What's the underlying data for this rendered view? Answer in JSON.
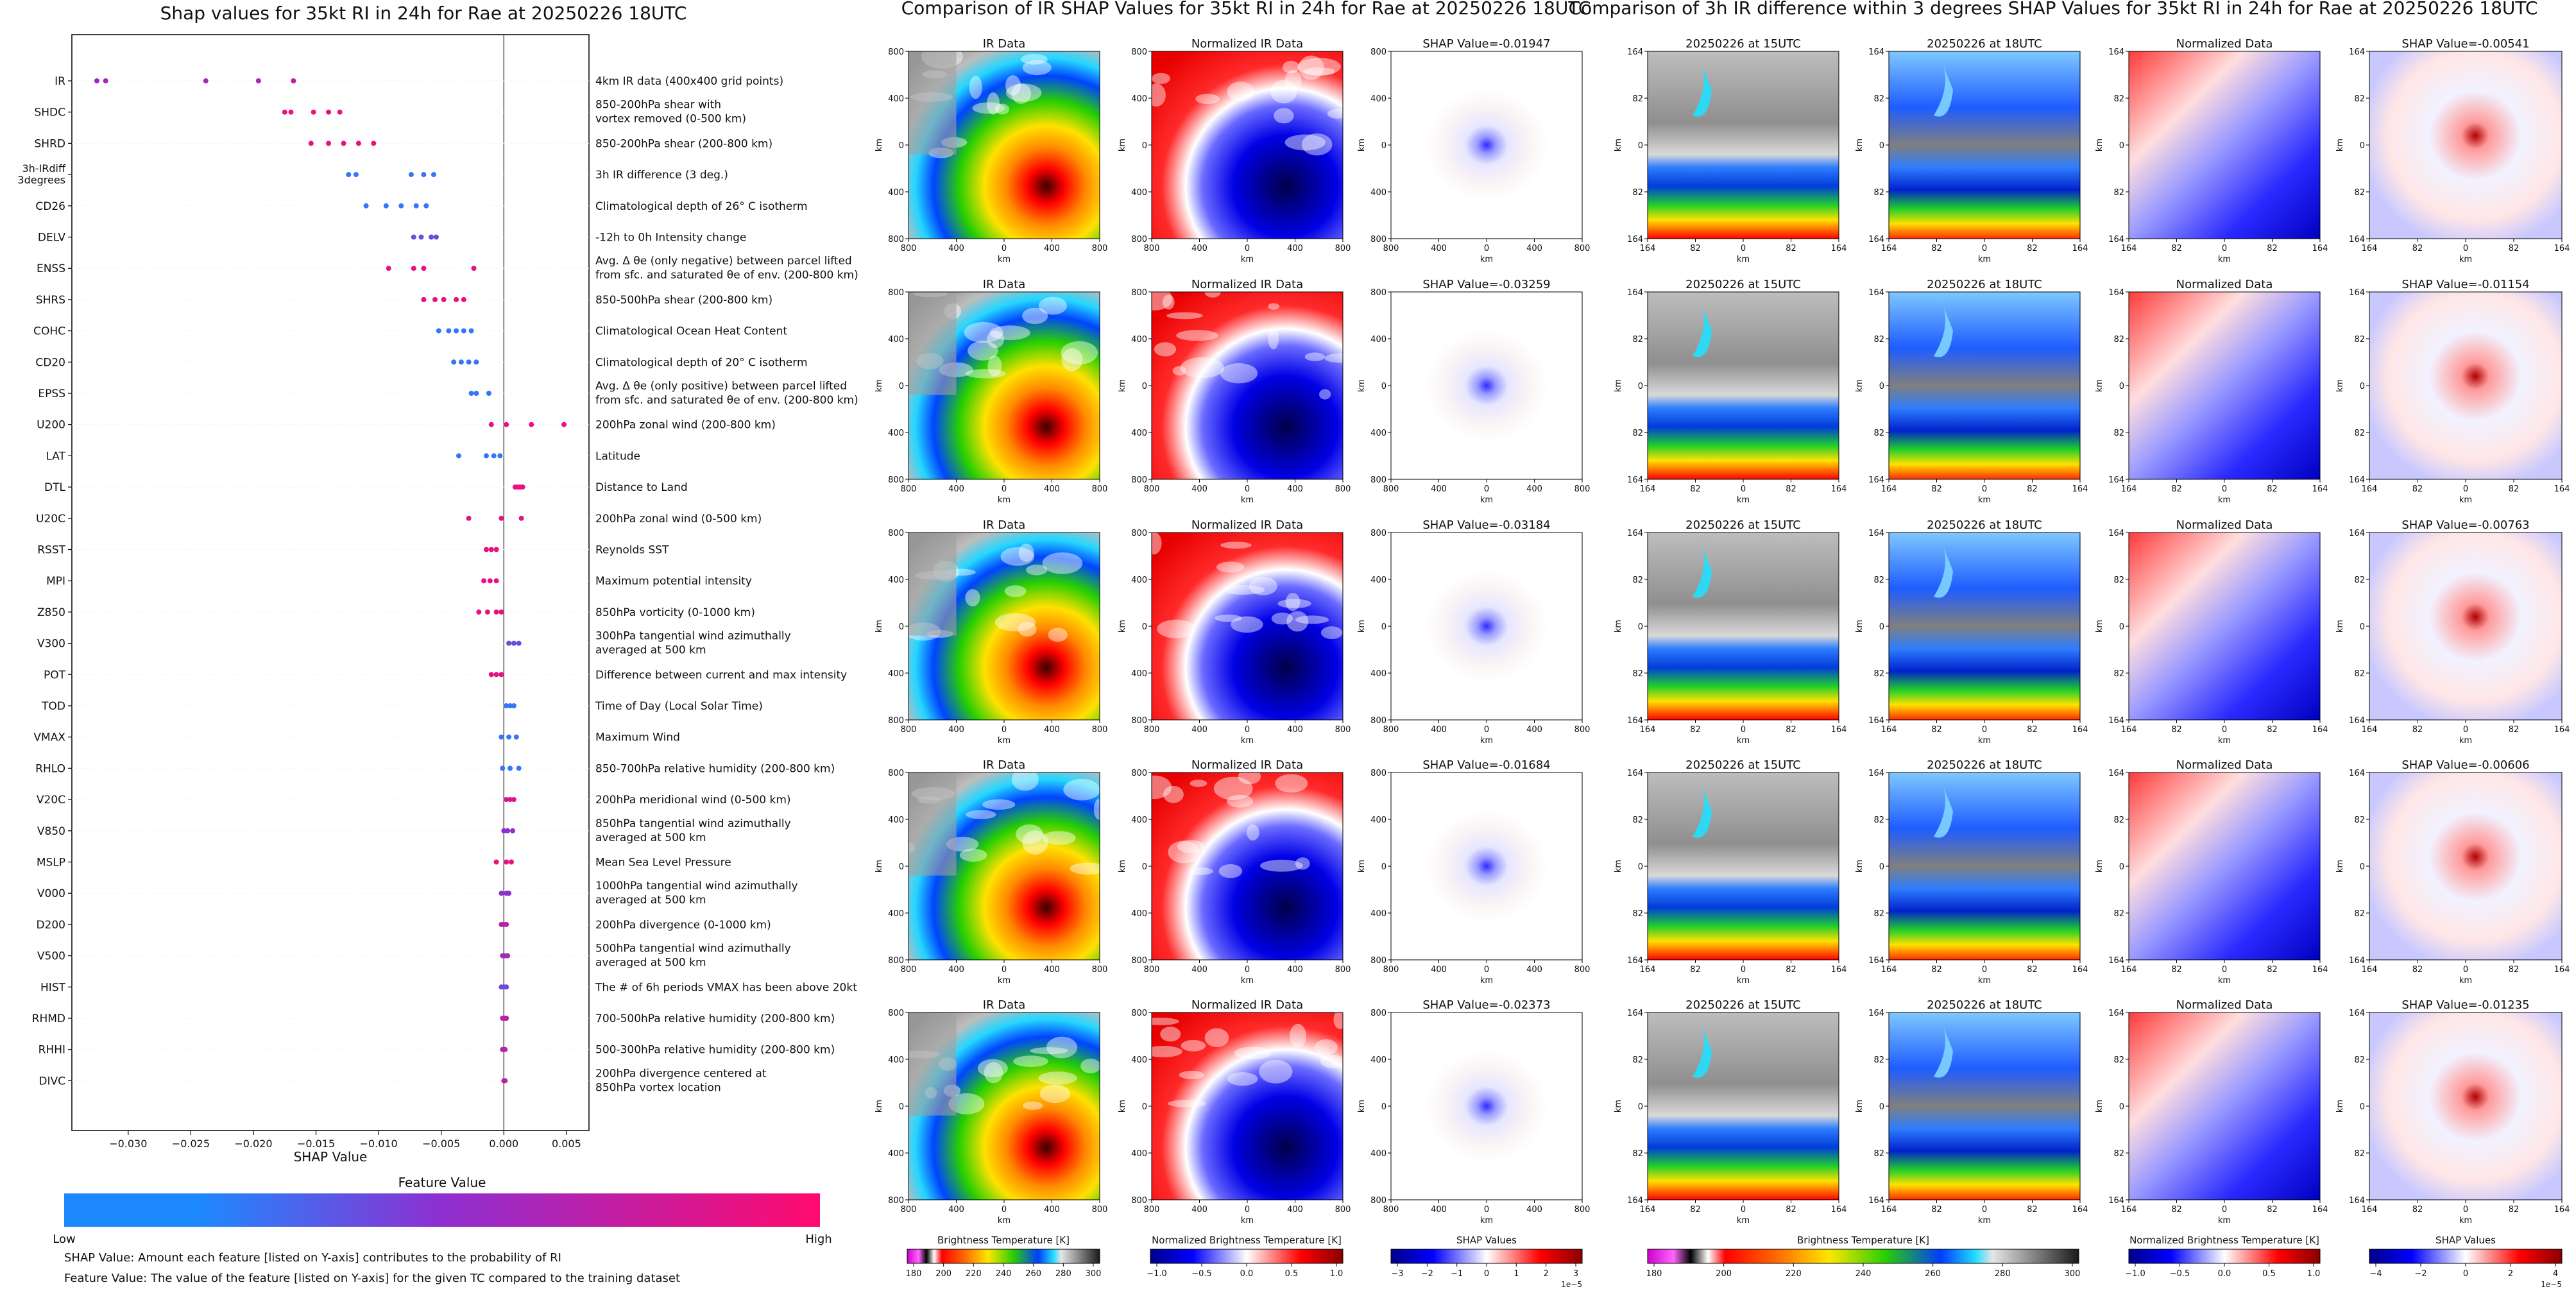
{
  "left_panel": {
    "title": "Shap values for 35kt RI in 24h for Rae at 20250226 18UTC",
    "xlabel": "SHAP Value",
    "x_ticks": [
      "−0.030",
      "−0.025",
      "−0.020",
      "−0.015",
      "−0.010",
      "−0.005",
      "0.000",
      "0.005"
    ],
    "xlim": [
      -0.0345,
      0.0068
    ],
    "colorbar_title": "Feature Value",
    "colorbar_low": "Low",
    "colorbar_high": "High",
    "footnote_1": "SHAP Value: Amount each feature [listed on Y-axis] contributes to the probability of RI",
    "footnote_2": "Feature Value: The value of the feature [listed on Y-axis] for the given TC compared to the training dataset",
    "colors": {
      "low": "#1e88ff",
      "mid": "#8e2fd0",
      "high": "#ff0a6e"
    }
  },
  "chart_data": [
    {
      "type": "scatter",
      "title": "Shap values for 35kt RI in 24h for Rae at 20250226 18UTC",
      "xlabel": "SHAP Value",
      "ylabel": "",
      "xlim": [
        -0.0345,
        0.0068
      ],
      "color_encoding": "Feature Value (Low to High)",
      "series": [
        {
          "feature": "IR",
          "description": "4km IR data (400x400 grid points)",
          "x": [
            -0.0325,
            -0.0318,
            -0.0238,
            -0.0196,
            -0.0168
          ],
          "feature_level": [
            0.55,
            0.6,
            0.6,
            0.65,
            0.7
          ]
        },
        {
          "feature": "SHDC",
          "description": "850-200hPa shear with\nvortex removed (0-500 km)",
          "x": [
            -0.0175,
            -0.017,
            -0.0152,
            -0.014,
            -0.0131
          ],
          "feature_level": [
            0.9,
            0.9,
            0.9,
            0.9,
            0.9
          ]
        },
        {
          "feature": "SHRD",
          "description": "850-200hPa shear (200-800 km)",
          "x": [
            -0.0154,
            -0.014,
            -0.0128,
            -0.0116,
            -0.0104
          ],
          "feature_level": [
            0.9,
            0.9,
            0.9,
            0.9,
            0.9
          ]
        },
        {
          "feature": "3h-IRdiff\n3degrees",
          "description": "3h IR difference (3 deg.)",
          "x": [
            -0.0124,
            -0.0118,
            -0.0074,
            -0.0064,
            -0.0056
          ],
          "feature_level": [
            0.1,
            0.1,
            0.1,
            0.15,
            0.1
          ]
        },
        {
          "feature": "CD26",
          "description": "Climatological depth of 26° C isotherm",
          "x": [
            -0.011,
            -0.0094,
            -0.0082,
            -0.007,
            -0.0062
          ],
          "feature_level": [
            0.1,
            0.1,
            0.1,
            0.1,
            0.1
          ]
        },
        {
          "feature": "DELV",
          "description": "-12h to 0h Intensity change",
          "x": [
            -0.0072,
            -0.0066,
            -0.0058,
            -0.0054
          ],
          "feature_level": [
            0.35,
            0.35,
            0.35,
            0.35
          ]
        },
        {
          "feature": "ENSS",
          "description": "Avg. Δ θe (only negative) between parcel lifted\nfrom sfc. and saturated θe of env. (200-800 km)",
          "x": [
            -0.0092,
            -0.0072,
            -0.0064,
            -0.0024
          ],
          "feature_level": [
            0.9,
            0.9,
            0.9,
            0.9
          ]
        },
        {
          "feature": "SHRS",
          "description": "850-500hPa shear (200-800 km)",
          "x": [
            -0.0064,
            -0.0055,
            -0.0048,
            -0.0038,
            -0.0032
          ],
          "feature_level": [
            0.9,
            0.9,
            0.9,
            0.9,
            0.9
          ]
        },
        {
          "feature": "COHC",
          "description": "Climatological Ocean Heat Content",
          "x": [
            -0.0052,
            -0.0044,
            -0.0038,
            -0.0032,
            -0.0026
          ],
          "feature_level": [
            0.1,
            0.1,
            0.1,
            0.1,
            0.1
          ]
        },
        {
          "feature": "CD20",
          "description": "Climatological depth of 20° C isotherm",
          "x": [
            -0.004,
            -0.0034,
            -0.0028,
            -0.0022
          ],
          "feature_level": [
            0.1,
            0.1,
            0.1,
            0.1
          ]
        },
        {
          "feature": "EPSS",
          "description": "Avg. Δ θe (only positive) between parcel lifted\nfrom sfc. and saturated θe of env. (200-800 km)",
          "x": [
            -0.0026,
            -0.0022,
            -0.0012
          ],
          "feature_level": [
            0.1,
            0.1,
            0.1
          ]
        },
        {
          "feature": "U200",
          "description": "200hPa zonal wind (200-800 km)",
          "x": [
            -0.001,
            0.0002,
            0.0022,
            0.0048
          ],
          "feature_level": [
            0.9,
            0.9,
            0.9,
            0.9
          ]
        },
        {
          "feature": "LAT",
          "description": "Latitude",
          "x": [
            -0.0036,
            -0.0014,
            -0.0008,
            -0.0003
          ],
          "feature_level": [
            0.1,
            0.1,
            0.1,
            0.1
          ]
        },
        {
          "feature": "DTL",
          "description": "Distance to Land",
          "x": [
            0.0009,
            0.0011,
            0.0013,
            0.0015
          ],
          "feature_level": [
            0.9,
            0.9,
            0.9,
            0.9
          ]
        },
        {
          "feature": "U20C",
          "description": "200hPa zonal wind (0-500 km)",
          "x": [
            -0.0028,
            -0.0002,
            0.0014
          ],
          "feature_level": [
            0.9,
            0.9,
            0.9
          ]
        },
        {
          "feature": "RSST",
          "description": "Reynolds SST",
          "x": [
            -0.0014,
            -0.001,
            -0.0006
          ],
          "feature_level": [
            0.9,
            0.9,
            0.9
          ]
        },
        {
          "feature": "MPI",
          "description": "Maximum potential intensity",
          "x": [
            -0.0016,
            -0.0011,
            -0.0006
          ],
          "feature_level": [
            0.9,
            0.9,
            0.9
          ]
        },
        {
          "feature": "Z850",
          "description": "850hPa vorticity (0-1000 km)",
          "x": [
            -0.002,
            -0.0013,
            -0.0006,
            -0.0002
          ],
          "feature_level": [
            0.9,
            0.9,
            0.9,
            0.9
          ]
        },
        {
          "feature": "V300",
          "description": "300hPa tangential wind azimuthally\naveraged at 500 km",
          "x": [
            0.0004,
            0.0008,
            0.0012
          ],
          "feature_level": [
            0.35,
            0.35,
            0.35
          ]
        },
        {
          "feature": "POT",
          "description": "Difference between current and max intensity",
          "x": [
            -0.001,
            -0.0006,
            -0.0002
          ],
          "feature_level": [
            0.9,
            0.9,
            0.9
          ]
        },
        {
          "feature": "TOD",
          "description": "Time of Day (Local Solar Time)",
          "x": [
            0.0002,
            0.0005,
            0.0008
          ],
          "feature_level": [
            0.1,
            0.1,
            0.1
          ]
        },
        {
          "feature": "VMAX",
          "description": "Maximum Wind",
          "x": [
            -0.0002,
            0.0004,
            0.001
          ],
          "feature_level": [
            0.1,
            0.1,
            0.1
          ]
        },
        {
          "feature": "RHLO",
          "description": "850-700hPa relative humidity (200-800 km)",
          "x": [
            -0.0001,
            0.0005,
            0.0012
          ],
          "feature_level": [
            0.1,
            0.1,
            0.1
          ]
        },
        {
          "feature": "V20C",
          "description": "200hPa meridional wind (0-500 km)",
          "x": [
            0.0002,
            0.0005,
            0.0008
          ],
          "feature_level": [
            0.85,
            0.85,
            0.85
          ]
        },
        {
          "feature": "V850",
          "description": "850hPa tangential wind azimuthally\naveraged at 500 km",
          "x": [
            0.0,
            0.0003,
            0.0007
          ],
          "feature_level": [
            0.5,
            0.5,
            0.5
          ]
        },
        {
          "feature": "MSLP",
          "description": "Mean Sea Level Pressure",
          "x": [
            -0.0006,
            0.0002,
            0.0006
          ],
          "feature_level": [
            0.9,
            0.9,
            0.9
          ]
        },
        {
          "feature": "V000",
          "description": "1000hPa tangential wind azimuthally\naveraged at 500 km",
          "x": [
            -0.0002,
            0.0002,
            0.0004
          ],
          "feature_level": [
            0.5,
            0.5,
            0.5
          ]
        },
        {
          "feature": "D200",
          "description": "200hPa divergence (0-1000 km)",
          "x": [
            -0.0002,
            0.0,
            0.0002
          ],
          "feature_level": [
            0.7,
            0.7,
            0.7
          ]
        },
        {
          "feature": "V500",
          "description": "500hPa tangential wind azimuthally\naveraged at 500 km",
          "x": [
            -0.0001,
            0.0001,
            0.0003
          ],
          "feature_level": [
            0.6,
            0.6,
            0.6
          ]
        },
        {
          "feature": "HIST",
          "description": "The # of 6h periods VMAX has been above 20kt",
          "x": [
            -0.0002,
            0.0,
            0.0002
          ],
          "feature_level": [
            0.35,
            0.35,
            0.35
          ]
        },
        {
          "feature": "RHMD",
          "description": "700-500hPa relative humidity (200-800 km)",
          "x": [
            -0.0001,
            0.0001,
            0.0002
          ],
          "feature_level": [
            0.7,
            0.7,
            0.7
          ]
        },
        {
          "feature": "RHHI",
          "description": "500-300hPa relative humidity (200-800 km)",
          "x": [
            -0.0001,
            0.0,
            0.0001
          ],
          "feature_level": [
            0.7,
            0.7,
            0.7
          ]
        },
        {
          "feature": "DIVC",
          "description": "200hPa divergence centered at\n850hPa vortex location",
          "x": [
            0.0,
            0.0001
          ],
          "feature_level": [
            0.7,
            0.7
          ]
        }
      ]
    },
    {
      "type": "heatmap",
      "title": "Comparison of IR SHAP Values for 35kt RI in 24h for Rae at 20250226 18UTC",
      "column_titles": [
        "IR Data",
        "Normalized IR Data"
      ],
      "shap_titles": [
        "SHAP Value=-0.01947",
        "SHAP Value=-0.03259",
        "SHAP Value=-0.03184",
        "SHAP Value=-0.01684",
        "SHAP Value=-0.02373"
      ],
      "xlabel": "km",
      "ylabel": "km",
      "x_ticks": [
        "800",
        "400",
        "0",
        "400",
        "800"
      ],
      "y_ticks": [
        "800",
        "400",
        "0",
        "400",
        "800"
      ],
      "colorbars": [
        {
          "label": "Brightness Temperature [K]",
          "ticks": [
            "180",
            "200",
            "220",
            "240",
            "260",
            "280",
            "300"
          ]
        },
        {
          "label": "Normalized Brightness Temperature [K]",
          "ticks": [
            "−1.0",
            "−0.5",
            "0.0",
            "0.5",
            "1.0"
          ]
        },
        {
          "label": "SHAP Values",
          "ticks": [
            "−3",
            "−2",
            "−1",
            "0",
            "1",
            "2",
            "3"
          ],
          "exponent": "1e−5"
        }
      ]
    },
    {
      "type": "heatmap",
      "title": "Comparison of 3h IR difference within 3 degrees SHAP Values for 35kt RI in 24h for Rae at 20250226 18UTC",
      "column_titles": [
        "20250226 at 15UTC",
        "20250226 at 18UTC",
        "Normalized Data"
      ],
      "shap_titles": [
        "SHAP Value=-0.00541",
        "SHAP Value=-0.01154",
        "SHAP Value=-0.00763",
        "SHAP Value=-0.00606",
        "SHAP Value=-0.01235"
      ],
      "xlabel": "km",
      "ylabel": "km",
      "x_ticks": [
        "164",
        "82",
        "0",
        "82",
        "164"
      ],
      "y_ticks": [
        "164",
        "82",
        "0",
        "82",
        "164"
      ],
      "colorbars": [
        {
          "label": "Brightness Temperature [K]",
          "ticks": [
            "180",
            "200",
            "220",
            "240",
            "260",
            "280",
            "300"
          ]
        },
        {
          "label": "Normalized Brightness Temperature [K]",
          "ticks": [
            "−1.0",
            "−0.5",
            "0.0",
            "0.5",
            "1.0"
          ]
        },
        {
          "label": "SHAP Values",
          "ticks": [
            "−4",
            "−2",
            "0",
            "2",
            "4"
          ],
          "exponent": "1e−5"
        }
      ]
    }
  ]
}
